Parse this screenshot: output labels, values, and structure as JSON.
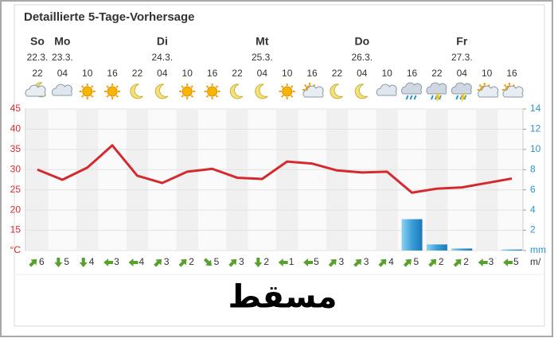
{
  "chart_data": {
    "type": "line",
    "title": "Detaillierte 5-Tage-Vorhersage",
    "day_labels": [
      "So",
      "Mo",
      "Di",
      "Mt",
      "Do",
      "Fr"
    ],
    "date_labels": [
      "22.3.",
      "23.3.",
      "24.3.",
      "25.3.",
      "26.3.",
      "27.3."
    ],
    "categories": [
      "22",
      "04",
      "10",
      "16",
      "22",
      "04",
      "10",
      "16",
      "22",
      "04",
      "10",
      "16",
      "22",
      "04",
      "10",
      "16",
      "22",
      "04",
      "10",
      "16"
    ],
    "series": [
      {
        "type": "line",
        "color": "#d42a2f",
        "values": [
          30,
          27.5,
          30.5,
          36,
          28.5,
          26.7,
          29.5,
          30.2,
          28,
          27.7,
          32,
          31.5,
          29.8,
          29.3,
          29.5,
          24.3,
          25.3,
          25.6,
          26.7,
          27.8
        ]
      },
      {
        "type": "bar",
        "axis": "y2",
        "color": "#3a9fd8",
        "values": [
          0,
          0,
          0,
          0,
          0,
          0,
          0,
          0,
          0,
          0,
          0,
          0,
          0,
          0,
          0,
          3.1,
          0.6,
          0.2,
          0,
          0.1
        ]
      }
    ],
    "ylim": [
      10,
      45
    ],
    "yticks": [
      {
        "value": 10,
        "label": "°C"
      },
      15,
      20,
      25,
      30,
      35,
      40,
      45
    ],
    "y2lim": [
      0,
      14
    ],
    "y2ticks": [
      {
        "value": 0,
        "label": "mm"
      },
      2,
      4,
      6,
      8,
      10,
      12,
      14
    ],
    "grid": true,
    "wind_values": [
      6,
      5,
      4,
      3,
      4,
      3,
      2,
      5,
      3,
      2,
      1,
      5,
      3,
      3,
      4,
      5,
      2,
      2,
      3,
      5
    ],
    "wind_unit": "m/",
    "city": "مسقط"
  }
}
